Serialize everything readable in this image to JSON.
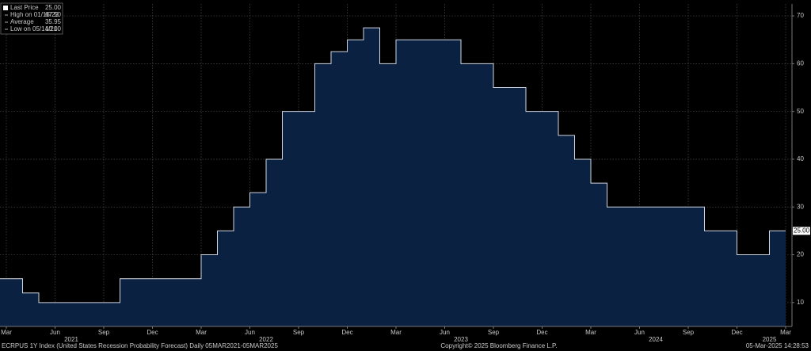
{
  "chart_data": {
    "type": "step-area",
    "title": "ECRPUS 1Y Index (United States Recession Probability Forecast)  Daily 05MAR2021-05MAR2025",
    "copyright": "Copyright© 2025 Bloomberg Finance L.P.",
    "timestamp": "05-Mar-2025 14:28:53",
    "legend": [
      {
        "label": "Last Price",
        "value": 25,
        "value_label": "25.00"
      },
      {
        "label": "High on 01/16/23",
        "value": 67.5,
        "value_label": "67.50"
      },
      {
        "label": "Average",
        "value": 35.95,
        "value_label": "35.95"
      },
      {
        "label": "Low on 05/14/21",
        "value": 10,
        "value_label": "10.00"
      }
    ],
    "last_value": 25,
    "last_value_label": "25.00",
    "x": [
      "2021-02",
      "2021-04",
      "2021-05",
      "2021-10",
      "2022-03",
      "2022-04",
      "2022-05",
      "2022-06",
      "2022-07",
      "2022-08",
      "2022-10",
      "2022-11",
      "2022-12",
      "2023-01",
      "2023-02",
      "2023-03",
      "2023-07",
      "2023-09",
      "2023-11",
      "2024-01",
      "2024-02",
      "2024-03",
      "2024-04",
      "2024-10",
      "2024-12",
      "2025-02",
      "2025-03"
    ],
    "series": [
      {
        "name": "Last Price",
        "color": "#d0d6e0",
        "fill": "#0a2142",
        "values": [
          15,
          12,
          10,
          15,
          20,
          25,
          30,
          33,
          40,
          50,
          60,
          62.5,
          65,
          67.5,
          60,
          65,
          60,
          55,
          50,
          45,
          40,
          35,
          30,
          25,
          20,
          25,
          25
        ]
      }
    ],
    "xlim": [
      "2021-03",
      "2025-03"
    ],
    "xticks": [
      {
        "value": "2021-03",
        "label": "Mar"
      },
      {
        "value": "2021-06",
        "label": "Jun"
      },
      {
        "value": "2021-09",
        "label": "Sep"
      },
      {
        "value": "2021-12",
        "label": "Dec"
      },
      {
        "value": "2022-03",
        "label": "Mar"
      },
      {
        "value": "2022-06",
        "label": "Jun"
      },
      {
        "value": "2022-09",
        "label": "Sep"
      },
      {
        "value": "2022-12",
        "label": "Dec"
      },
      {
        "value": "2023-03",
        "label": "Mar"
      },
      {
        "value": "2023-06",
        "label": "Jun"
      },
      {
        "value": "2023-09",
        "label": "Sep"
      },
      {
        "value": "2023-12",
        "label": "Dec"
      },
      {
        "value": "2024-03",
        "label": "Mar"
      },
      {
        "value": "2024-06",
        "label": "Jun"
      },
      {
        "value": "2024-09",
        "label": "Sep"
      },
      {
        "value": "2024-12",
        "label": "Dec"
      },
      {
        "value": "2025-03",
        "label": "Mar"
      }
    ],
    "year_labels": [
      {
        "value": "2021-07",
        "label": "2021"
      },
      {
        "value": "2022-07",
        "label": "2022"
      },
      {
        "value": "2023-07",
        "label": "2023"
      },
      {
        "value": "2024-07",
        "label": "2024"
      },
      {
        "value": "2025-02",
        "label": "2025"
      }
    ],
    "ylim": [
      5,
      72.5
    ],
    "yticks": [
      10,
      20,
      30,
      40,
      50,
      60,
      70
    ],
    "grid": true
  }
}
